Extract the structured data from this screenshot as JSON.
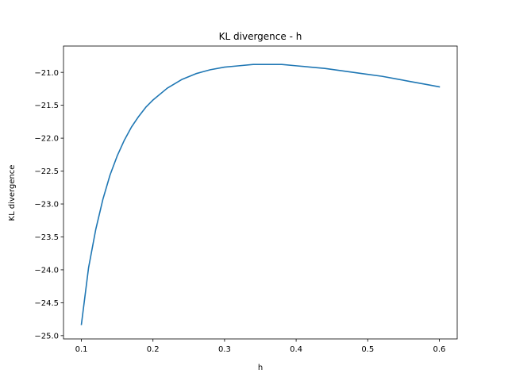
{
  "chart_data": {
    "type": "line",
    "title": "KL divergence - h",
    "xlabel": "h",
    "ylabel": "KL divergence",
    "xlim": [
      0.075,
      0.625
    ],
    "ylim": [
      -25.05,
      -20.6
    ],
    "grid": false,
    "xticks": [
      0.1,
      0.2,
      0.3,
      0.4,
      0.5,
      0.6
    ],
    "xtick_labels": [
      "0.1",
      "0.2",
      "0.3",
      "0.4",
      "0.5",
      "0.6"
    ],
    "yticks": [
      -25.0,
      -24.5,
      -24.0,
      -23.5,
      -23.0,
      -22.5,
      -22.0,
      -21.5,
      -21.0
    ],
    "ytick_labels": [
      "−25.0",
      "−24.5",
      "−24.0",
      "−23.5",
      "−23.0",
      "−22.5",
      "−22.0",
      "−21.5",
      "−21.0"
    ],
    "series": [
      {
        "color": "#1f77b4",
        "x": [
          0.1,
          0.11,
          0.12,
          0.13,
          0.14,
          0.15,
          0.16,
          0.17,
          0.18,
          0.19,
          0.2,
          0.22,
          0.24,
          0.26,
          0.28,
          0.3,
          0.32,
          0.34,
          0.36,
          0.38,
          0.4,
          0.42,
          0.44,
          0.46,
          0.48,
          0.5,
          0.52,
          0.54,
          0.56,
          0.58,
          0.6
        ],
        "y": [
          -24.83,
          -23.97,
          -23.39,
          -22.93,
          -22.56,
          -22.27,
          -22.03,
          -21.83,
          -21.67,
          -21.53,
          -21.42,
          -21.24,
          -21.11,
          -21.02,
          -20.96,
          -20.92,
          -20.9,
          -20.88,
          -20.88,
          -20.88,
          -20.9,
          -20.92,
          -20.94,
          -20.97,
          -21.0,
          -21.03,
          -21.06,
          -21.1,
          -21.14,
          -21.18,
          -21.22
        ]
      }
    ]
  }
}
